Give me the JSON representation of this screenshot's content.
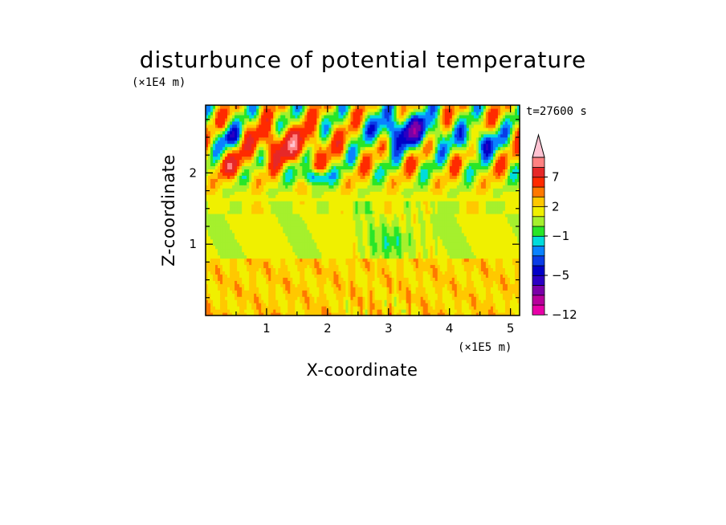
{
  "chart_data": {
    "type": "heatmap",
    "title": "disturbunce of potential temperature",
    "time_label": "t=27600 s",
    "xlabel": "X-coordinate",
    "ylabel": "Z-coordinate",
    "x_scale_label": "(×1E5 m)",
    "y_scale_label": "(×1E4 m)",
    "xlim": [
      0,
      5.15
    ],
    "ylim": [
      0,
      2.95
    ],
    "x_ticks": [
      "1",
      "2",
      "3",
      "4",
      "5"
    ],
    "y_ticks": [
      "1",
      "2"
    ],
    "colorbar": {
      "labels": [
        "7",
        "2",
        "−1",
        "−5",
        "−12"
      ],
      "levels": [
        -12,
        -10,
        -8,
        -6,
        -5,
        -4,
        -3,
        -2,
        -1,
        0,
        1,
        2,
        3,
        5,
        7,
        9
      ],
      "colors": [
        "#e800a8",
        "#b8009c",
        "#7a00a8",
        "#2a00c4",
        "#0000c8",
        "#0a3ce6",
        "#0a82ff",
        "#00dcdc",
        "#28e628",
        "#a5f02d",
        "#f0f000",
        "#ffc800",
        "#ff7800",
        "#ff2a00",
        "#e62828",
        "#ff8282",
        "#ffc3d2"
      ]
    },
    "description_values": {
      "lower_layer_z": [
        0,
        0.8
      ],
      "lower_layer_dominant": [
        1,
        2
      ],
      "middle_layer_z": [
        0.8,
        1.6
      ],
      "middle_layer_dominant": [
        -1,
        1
      ],
      "upper_layer_z": [
        1.6,
        2.95
      ],
      "upper_layer_range": [
        -5,
        5
      ]
    }
  }
}
